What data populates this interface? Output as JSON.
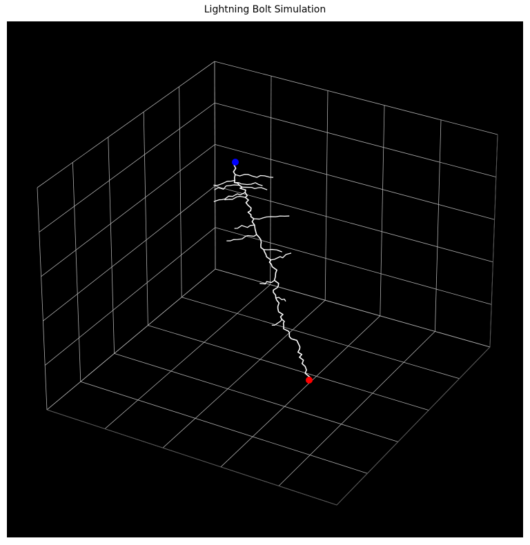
{
  "chart_data": {
    "type": "3d-line",
    "title": "Lightning Bolt Simulation",
    "xlabel": "",
    "ylabel": "",
    "zlabel": "",
    "grid": true,
    "axes_visible_ticks": false,
    "colors": {
      "background": "#000000",
      "bolt": "#ffffff",
      "start_point": "#0000ff",
      "end_point": "#ff0000",
      "grid": "#b0b0b0"
    },
    "start_point": {
      "name": "start",
      "color": "blue"
    },
    "end_point": {
      "name": "end",
      "color": "red"
    }
  }
}
